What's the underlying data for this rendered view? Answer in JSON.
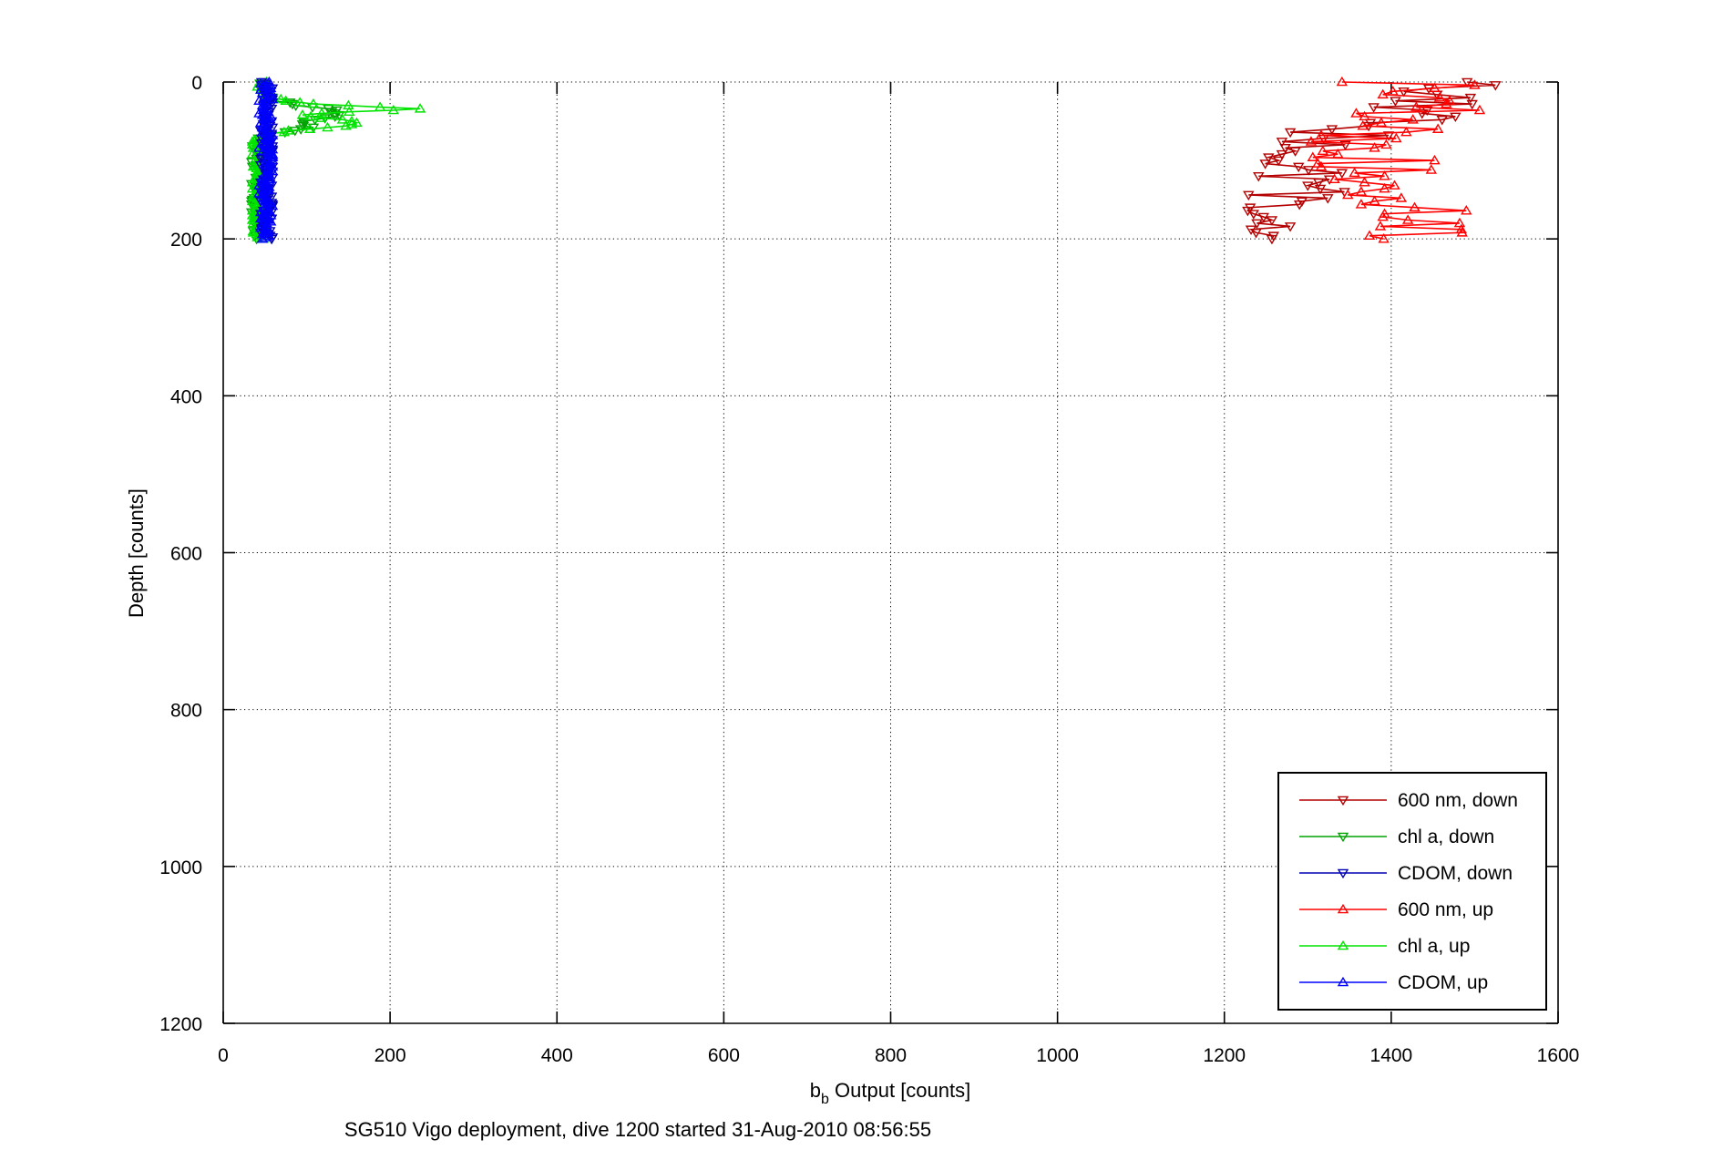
{
  "figure": {
    "subtitle": "SG510 Vigo deployment, dive 1200 started 31-Aug-2010 08:56:55",
    "background_color": "#ffffff",
    "grid_color": "#000000"
  },
  "chart_data": {
    "type": "line",
    "title": "",
    "subtitle": "SG510 Vigo deployment, dive 1200 started 31-Aug-2010 08:56:55",
    "xlabel": {
      "base": "b",
      "sub": "b",
      "rest": " Output [counts]"
    },
    "ylabel": "Depth [counts]",
    "xlim": [
      0,
      1600
    ],
    "ylim": [
      0,
      1200
    ],
    "y_direction": "reversed",
    "grid": "dotted",
    "legend_position": "lower right",
    "xticks": [
      0,
      200,
      400,
      600,
      800,
      1000,
      1200,
      1400,
      1600
    ],
    "yticks": [
      0,
      200,
      400,
      600,
      800,
      1000,
      1200
    ],
    "series": [
      {
        "name": "600 nm, down",
        "color": "#b40000",
        "marker": "triangle-down",
        "depths": [
          0,
          4,
          8,
          12,
          16,
          20,
          24,
          28,
          32,
          36,
          40,
          44,
          48,
          52,
          56,
          60,
          64,
          68,
          72,
          76,
          80,
          84,
          88,
          92,
          96,
          100,
          104,
          108,
          112,
          116,
          120,
          124,
          128,
          132,
          136,
          140,
          144,
          148,
          152,
          156,
          160,
          164,
          168,
          172,
          176,
          180,
          184,
          188,
          192,
          196,
          200
        ],
        "counts": [
          1491,
          1525,
          1445,
          1415,
          1455,
          1495,
          1405,
          1497,
          1379,
          1443,
          1437,
          1477,
          1461,
          1375,
          1373,
          1329,
          1279,
          1397,
          1319,
          1269,
          1345,
          1273,
          1285,
          1269,
          1253,
          1265,
          1249,
          1289,
          1301,
          1341,
          1241,
          1326,
          1313,
          1300,
          1315,
          1344,
          1229,
          1324,
          1293,
          1290,
          1231,
          1228,
          1235,
          1247,
          1257,
          1239,
          1279,
          1232,
          1238,
          1259,
          1257
        ]
      },
      {
        "name": "chl a, down",
        "color": "#00a400",
        "marker": "triangle-down",
        "depths": [
          0,
          2,
          4,
          6,
          8,
          10,
          12,
          14,
          16,
          18,
          20,
          22,
          24,
          26,
          28,
          30,
          32,
          34,
          36,
          38,
          40,
          42,
          44,
          46,
          48,
          50,
          52,
          54,
          56,
          58,
          60,
          62,
          64,
          66,
          68,
          70,
          72,
          74,
          76,
          78,
          80,
          82,
          84,
          86,
          88,
          90,
          92,
          94,
          96,
          98,
          100,
          102,
          104,
          106,
          108,
          110,
          112,
          114,
          116,
          118,
          120,
          122,
          124,
          126,
          128,
          130,
          132,
          134,
          136,
          138,
          140,
          142,
          144,
          146,
          148,
          150,
          152,
          154,
          156,
          158,
          160,
          162,
          164,
          166,
          168,
          170,
          172,
          174,
          176,
          178,
          180,
          182,
          184,
          186,
          188,
          190,
          192,
          194,
          196,
          198,
          200
        ],
        "counts": [
          49,
          44,
          49,
          46,
          44,
          47,
          51,
          53,
          46,
          47,
          59,
          55,
          56,
          80,
          83,
          87,
          107,
          126,
          136,
          130,
          134,
          139,
          134,
          122,
          110,
          96,
          97,
          95,
          96,
          108,
          93,
          86,
          74,
          52,
          55,
          52,
          42,
          43,
          48,
          43,
          45,
          35,
          47,
          45,
          42,
          39,
          45,
          43,
          48,
          40,
          47,
          34,
          45,
          39,
          35,
          45,
          43,
          43,
          45,
          48,
          45,
          39,
          45,
          48,
          48,
          34,
          45,
          39,
          37,
          40,
          45,
          47,
          40,
          43,
          37,
          35,
          34,
          45,
          34,
          39,
          47,
          47,
          42,
          34,
          39,
          47,
          45,
          42,
          39,
          40,
          42,
          38,
          45,
          44,
          41,
          36,
          42,
          45,
          38,
          45,
          40
        ]
      },
      {
        "name": "CDOM, down",
        "color": "#0000b4",
        "marker": "triangle-down",
        "depths": [
          0,
          2,
          4,
          6,
          8,
          10,
          12,
          14,
          16,
          18,
          20,
          22,
          24,
          26,
          28,
          30,
          32,
          34,
          36,
          38,
          40,
          42,
          44,
          46,
          48,
          50,
          52,
          54,
          56,
          58,
          60,
          62,
          64,
          66,
          68,
          70,
          72,
          74,
          76,
          78,
          80,
          82,
          84,
          86,
          88,
          90,
          92,
          94,
          96,
          98,
          100,
          102,
          104,
          106,
          108,
          110,
          112,
          114,
          116,
          118,
          120,
          122,
          124,
          126,
          128,
          130,
          132,
          134,
          136,
          138,
          140,
          142,
          144,
          146,
          148,
          150,
          152,
          154,
          156,
          158,
          160,
          162,
          164,
          166,
          168,
          170,
          172,
          174,
          176,
          178,
          180,
          182,
          184,
          186,
          188,
          190,
          192,
          194,
          196,
          198,
          200
        ],
        "counts": [
          46,
          51,
          46,
          53,
          59,
          48,
          54,
          53,
          50,
          53,
          58,
          59,
          56,
          59,
          50,
          48,
          50,
          58,
          51,
          54,
          48,
          54,
          51,
          50,
          50,
          58,
          50,
          48,
          56,
          59,
          53,
          45,
          48,
          58,
          58,
          51,
          46,
          59,
          56,
          46,
          54,
          59,
          50,
          59,
          59,
          50,
          56,
          53,
          46,
          45,
          53,
          58,
          48,
          45,
          59,
          56,
          51,
          59,
          51,
          51,
          53,
          59,
          48,
          50,
          45,
          56,
          58,
          46,
          54,
          51,
          45,
          54,
          48,
          58,
          54,
          48,
          45,
          58,
          59,
          59,
          58,
          54,
          48,
          58,
          45,
          50,
          51,
          58,
          48,
          53,
          50,
          51,
          48,
          46,
          46,
          56,
          45,
          54,
          56,
          59,
          58
        ]
      },
      {
        "name": "600 nm, up",
        "color": "#ff0000",
        "marker": "triangle-up",
        "depths": [
          0,
          4,
          8,
          12,
          16,
          20,
          24,
          28,
          32,
          36,
          40,
          44,
          48,
          52,
          56,
          60,
          64,
          68,
          72,
          76,
          80,
          84,
          88,
          92,
          96,
          100,
          104,
          108,
          112,
          116,
          120,
          124,
          128,
          132,
          136,
          140,
          144,
          148,
          152,
          156,
          160,
          164,
          168,
          172,
          176,
          180,
          184,
          188,
          192,
          196,
          200
        ],
        "counts": [
          1341,
          1500,
          1452,
          1402,
          1390,
          1458,
          1470,
          1466,
          1430,
          1506,
          1358,
          1368,
          1426,
          1388,
          1366,
          1456,
          1418,
          1316,
          1406,
          1304,
          1394,
          1380,
          1318,
          1336,
          1306,
          1452,
          1312,
          1316,
          1448,
          1356,
          1392,
          1332,
          1368,
          1404,
          1392,
          1364,
          1348,
          1412,
          1380,
          1364,
          1428,
          1490,
          1392,
          1390,
          1420,
          1482,
          1387,
          1484,
          1485,
          1374,
          1391
        ]
      },
      {
        "name": "chl a, up",
        "color": "#00e400",
        "marker": "triangle-up",
        "depths": [
          0,
          2,
          4,
          6,
          8,
          10,
          12,
          14,
          16,
          18,
          20,
          22,
          24,
          26,
          28,
          30,
          32,
          34,
          36,
          38,
          40,
          42,
          44,
          46,
          48,
          50,
          52,
          54,
          56,
          58,
          60,
          62,
          64,
          66,
          68,
          70,
          72,
          74,
          76,
          78,
          80,
          82,
          84,
          86,
          88,
          90,
          92,
          94,
          96,
          98,
          100,
          102,
          104,
          106,
          108,
          110,
          112,
          114,
          116,
          118,
          120,
          122,
          124,
          126,
          128,
          130,
          132,
          134,
          136,
          138,
          140,
          142,
          144,
          146,
          148,
          150,
          152,
          154,
          156,
          158,
          160,
          162,
          164,
          166,
          168,
          170,
          172,
          174,
          176,
          178,
          180,
          182,
          184,
          186,
          188,
          190,
          192,
          194,
          196,
          198,
          200
        ],
        "counts": [
          52,
          43,
          55,
          41,
          46,
          46,
          57,
          55,
          55,
          53,
          54,
          69,
          75,
          92,
          108,
          150,
          188,
          236,
          204,
          151,
          118,
          95,
          105,
          117,
          143,
          154,
          160,
          154,
          147,
          125,
          104,
          78,
          73,
          52,
          47,
          54,
          46,
          38,
          35,
          40,
          35,
          49,
          36,
          46,
          49,
          48,
          35,
          43,
          46,
          44,
          38,
          48,
          44,
          38,
          36,
          40,
          43,
          41,
          41,
          48,
          44,
          38,
          38,
          46,
          35,
          43,
          38,
          44,
          35,
          41,
          44,
          38,
          48,
          36,
          48,
          49,
          35,
          38,
          41,
          41,
          49,
          46,
          35,
          46,
          38,
          35,
          46,
          38,
          35,
          41,
          36,
          48,
          49,
          40,
          49,
          36,
          36,
          40,
          46,
          41,
          48
        ]
      },
      {
        "name": "CDOM, up",
        "color": "#0000ff",
        "marker": "triangle-up",
        "depths": [
          0,
          2,
          4,
          6,
          8,
          10,
          12,
          14,
          16,
          18,
          20,
          22,
          24,
          26,
          28,
          30,
          32,
          34,
          36,
          38,
          40,
          42,
          44,
          46,
          48,
          50,
          52,
          54,
          56,
          58,
          60,
          62,
          64,
          66,
          68,
          70,
          72,
          74,
          76,
          78,
          80,
          82,
          84,
          86,
          88,
          90,
          92,
          94,
          96,
          98,
          100,
          102,
          104,
          106,
          108,
          110,
          112,
          114,
          116,
          118,
          120,
          122,
          124,
          126,
          128,
          130,
          132,
          134,
          136,
          138,
          140,
          142,
          144,
          146,
          148,
          150,
          152,
          154,
          156,
          158,
          160,
          162,
          164,
          166,
          168,
          170,
          172,
          174,
          176,
          178,
          180,
          182,
          184,
          186,
          188,
          190,
          192,
          194,
          196,
          198,
          200
        ],
        "counts": [
          55,
          45,
          57,
          47,
          57,
          45,
          57,
          47,
          57,
          50,
          52,
          59,
          43,
          50,
          52,
          47,
          48,
          52,
          48,
          54,
          43,
          47,
          57,
          55,
          50,
          55,
          45,
          48,
          52,
          47,
          54,
          54,
          47,
          50,
          59,
          55,
          55,
          52,
          55,
          47,
          50,
          55,
          43,
          59,
          48,
          54,
          59,
          59,
          59,
          52,
          59,
          52,
          55,
          50,
          59,
          54,
          54,
          59,
          54,
          55,
          54,
          47,
          55,
          55,
          47,
          50,
          43,
          55,
          54,
          54,
          48,
          43,
          48,
          52,
          48,
          52,
          50,
          55,
          52,
          59,
          50,
          52,
          55,
          45,
          48,
          57,
          47,
          45,
          55,
          57,
          52,
          47,
          52,
          45,
          54,
          54,
          50,
          47,
          55,
          50,
          47
        ]
      }
    ]
  }
}
